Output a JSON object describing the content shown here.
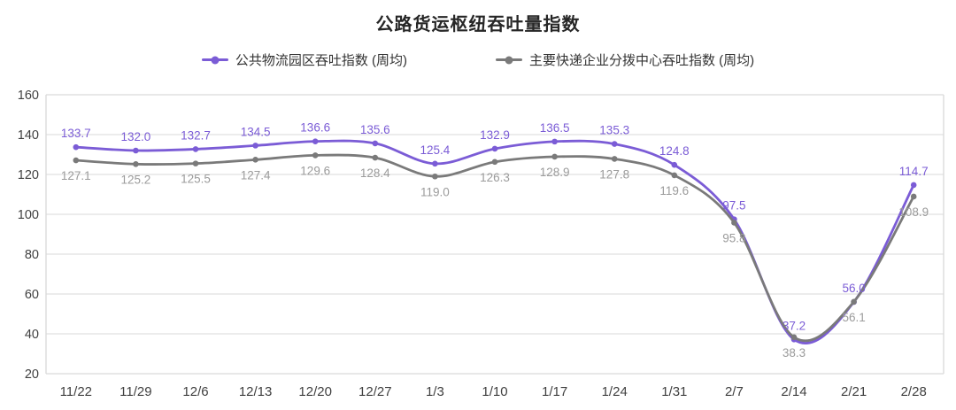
{
  "chart_data": {
    "type": "line",
    "title": "公路货运枢纽吞吐量指数",
    "categories": [
      "11/22",
      "11/29",
      "12/6",
      "12/13",
      "12/20",
      "12/27",
      "1/3",
      "1/10",
      "1/17",
      "1/24",
      "1/31",
      "2/7",
      "2/14",
      "2/21",
      "2/28"
    ],
    "series": [
      {
        "name": "公共物流园区吞吐指数 (周均)",
        "color": "#7B5CD6",
        "label_color": "#7B5CD6",
        "label_position": "above",
        "values": [
          133.7,
          132.0,
          132.7,
          134.5,
          136.6,
          135.6,
          125.4,
          132.9,
          136.5,
          135.3,
          124.8,
          97.5,
          37.2,
          56.0,
          114.7
        ]
      },
      {
        "name": "主要快递企业分拨中心吞吐指数 (周均)",
        "color": "#7A7A7A",
        "label_color": "#9B9B9B",
        "label_position": "below",
        "values": [
          127.1,
          125.2,
          125.5,
          127.4,
          129.6,
          128.4,
          119.0,
          126.3,
          128.9,
          127.8,
          119.6,
          95.8,
          38.3,
          56.1,
          108.9
        ]
      }
    ],
    "ylim": [
      20,
      160
    ],
    "ytick_step": 20,
    "yticks": [
      "20",
      "40",
      "60",
      "80",
      "100",
      "120",
      "140",
      "160"
    ],
    "grid": true,
    "smooth": true,
    "legend_position": "top",
    "colors": {
      "gridline": "#e0e0e0",
      "plot_border": "#d9d9d9",
      "axis_text": "#404040",
      "title_text": "#262626",
      "legend_text": "#333333"
    }
  }
}
